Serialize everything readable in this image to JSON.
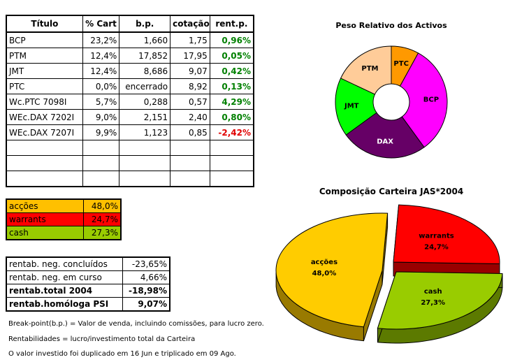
{
  "portfolio": {
    "headers": [
      "Título",
      "% Cart",
      "b.p.",
      "cotação",
      "rent.p."
    ],
    "rows": [
      {
        "titulo": "BCP",
        "pct": "23,2%",
        "bp": "1,660",
        "cot": "1,75",
        "rent": "0,96%",
        "rent_color": "#008000"
      },
      {
        "titulo": "PTM",
        "pct": "12,4%",
        "bp": "17,852",
        "cot": "17,95",
        "rent": "0,05%",
        "rent_color": "#008000"
      },
      {
        "titulo": "JMT",
        "pct": "12,4%",
        "bp": "8,686",
        "cot": "9,07",
        "rent": "0,42%",
        "rent_color": "#008000"
      },
      {
        "titulo": "PTC",
        "pct": "0,0%",
        "bp": "encerrado",
        "cot": "8,92",
        "rent": "0,13%",
        "rent_color": "#008000"
      },
      {
        "titulo": "Wc.PTC 7098I",
        "pct": "5,7%",
        "bp": "0,288",
        "cot": "0,57",
        "rent": "4,29%",
        "rent_color": "#008000"
      },
      {
        "titulo": "WEc.DAX 7202I",
        "pct": "9,0%",
        "bp": "2,151",
        "cot": "2,40",
        "rent": "0,80%",
        "rent_color": "#008000"
      },
      {
        "titulo": "WEc.DAX 7207I",
        "pct": "9,9%",
        "bp": "1,123",
        "cot": "0,85",
        "rent": "-2,42%",
        "rent_color": "#e00000"
      },
      {
        "titulo": "",
        "pct": "",
        "bp": "",
        "cot": "",
        "rent": "",
        "rent_color": "#000000"
      },
      {
        "titulo": "",
        "pct": "",
        "bp": "",
        "cot": "",
        "rent": "",
        "rent_color": "#000000"
      },
      {
        "titulo": "",
        "pct": "",
        "bp": "",
        "cot": "",
        "rent": "",
        "rent_color": "#000000"
      }
    ]
  },
  "allocation": [
    {
      "label": "acções",
      "value": "48,0%",
      "color": "#ffc000"
    },
    {
      "label": "warrants",
      "value": "24,7%",
      "color": "#ff0000"
    },
    {
      "label": "cash",
      "value": "27,3%",
      "color": "#99cc00"
    }
  ],
  "stats": [
    {
      "label": "rentab. neg. concluídos",
      "value": "-23,65%",
      "bold": false
    },
    {
      "label": "rentab. neg. em curso",
      "value": "4,66%",
      "bold": false
    },
    {
      "label": "rentab.total 2004",
      "value": "-18,98%",
      "bold": true
    },
    {
      "label": "rentab.homóloga PSI",
      "value": "9,07%",
      "bold": true
    }
  ],
  "notes": [
    "Break-point(b.p.) = Valor de venda, incluindo comissões, para lucro zero.",
    "Rentabilidades = lucro/investimento total da Carteira",
    "O valor investido foi duplicado em 16 Jun e triplicado em 09 Ago."
  ],
  "chart_data": [
    {
      "type": "pie",
      "subtype": "donut",
      "title": "Peso Relativo dos Activos",
      "labels": [
        "PTC",
        "BCP",
        "DAX",
        "JMT",
        "PTM"
      ],
      "values": [
        8,
        32,
        25,
        17,
        18
      ],
      "colors": [
        "#ff9900",
        "#ff00ff",
        "#660066",
        "#00ff00",
        "#ffcc99"
      ]
    },
    {
      "type": "pie",
      "subtype": "3d-exploded",
      "title": "Composição Carteira JAS*2004",
      "labels": [
        "acções",
        "warrants",
        "cash"
      ],
      "value_labels": [
        "48,0%",
        "24,7%",
        "27,3%"
      ],
      "values": [
        48.0,
        24.7,
        27.3
      ],
      "colors": [
        "#ffcc00",
        "#ff0000",
        "#99cc00"
      ]
    }
  ]
}
